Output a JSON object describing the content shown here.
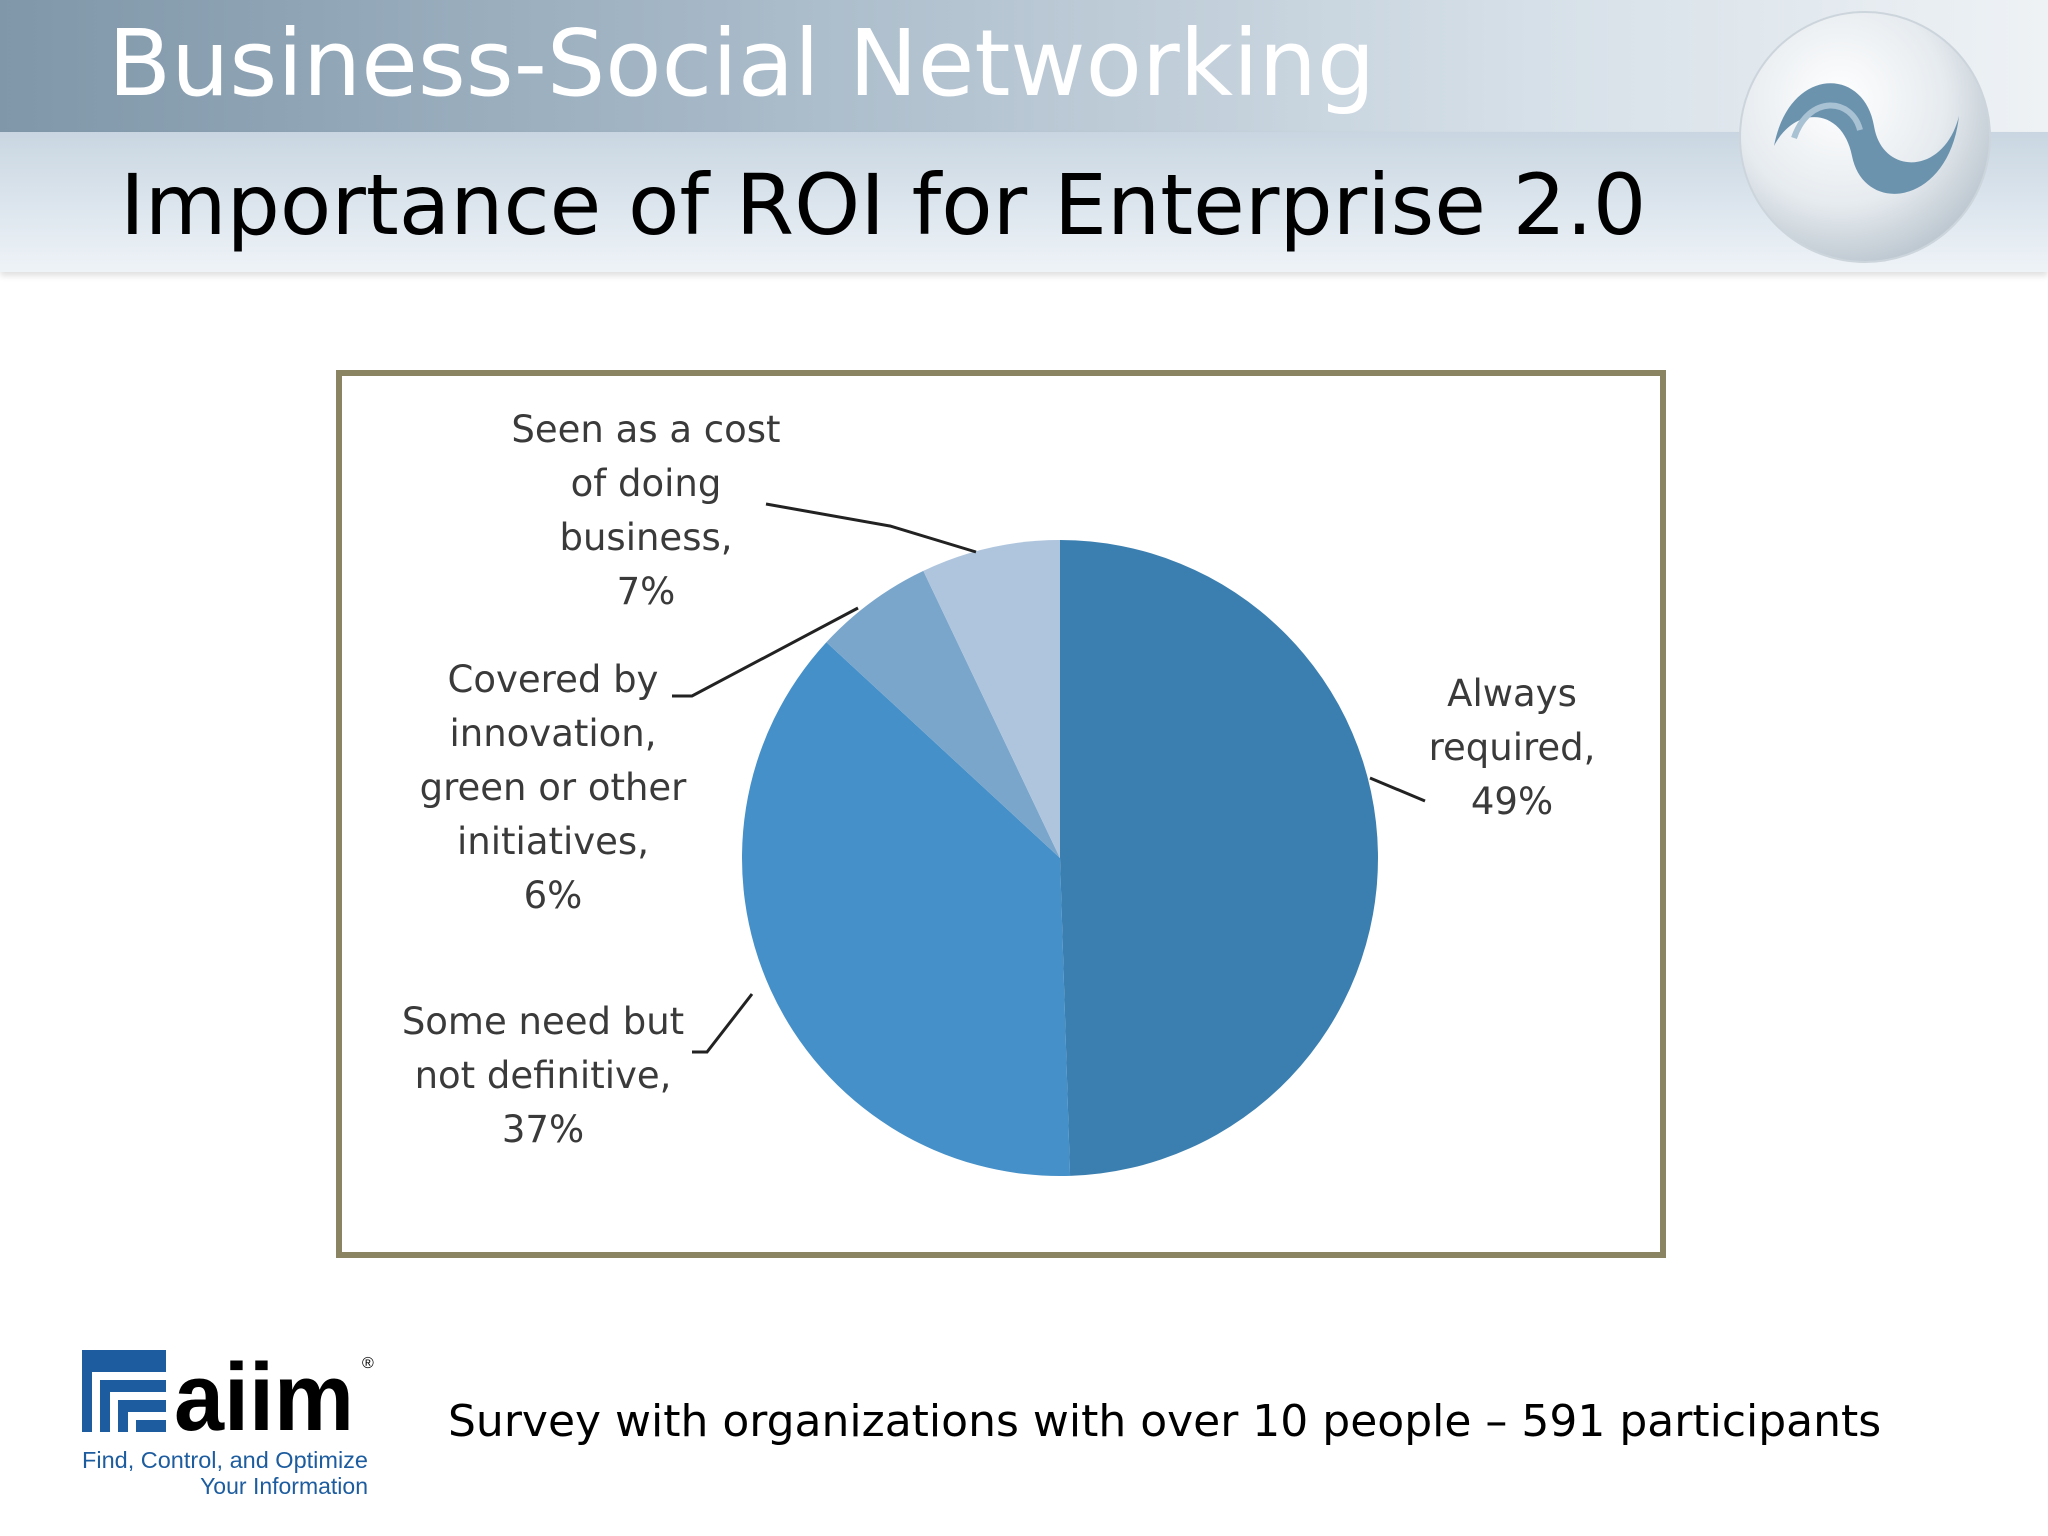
{
  "header": {
    "section_title": "Business-Social Networking",
    "slide_title": "Importance of ROI for Enterprise 2.0"
  },
  "logo": {
    "brand": "aiim",
    "registered": "®",
    "tagline_line1": "Find, Control, and Optimize",
    "tagline_line2": "Your Information",
    "color": "#1d5c9e"
  },
  "footnote": "Survey with organizations with over 10 people – 591 participants",
  "chart_data": {
    "type": "pie",
    "start_angle_deg": 0,
    "direction": "clockwise",
    "slices": [
      {
        "label_lines": [
          "Always",
          "required,",
          "49%"
        ],
        "value": 49,
        "color": "#3b7fb0"
      },
      {
        "label_lines": [
          "Some need but",
          "not definitive,",
          "37%"
        ],
        "value": 37,
        "color": "#4590c8"
      },
      {
        "label_lines": [
          "Covered by",
          "innovation,",
          "green or other",
          "initiatives,",
          "6%"
        ],
        "value": 6,
        "color": "#7aa6cc"
      },
      {
        "label_lines": [
          "Seen as a cost",
          "of doing",
          "business,",
          "7%"
        ],
        "value": 7,
        "color": "#aec5dd"
      }
    ],
    "legend": "none",
    "label_style": "callouts with leader lines"
  }
}
